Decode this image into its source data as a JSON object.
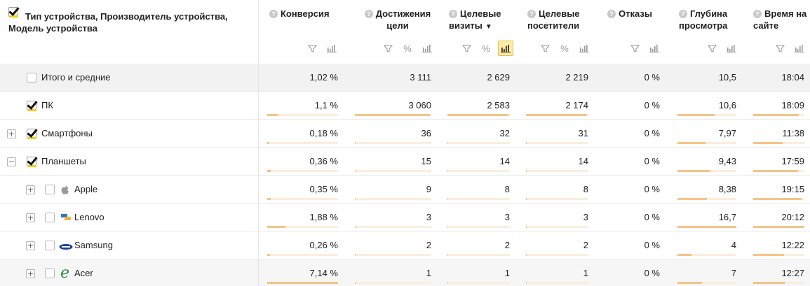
{
  "header": {
    "dimension_title": "Тип устройства, Производитель устройства, Модель устройства",
    "metrics": [
      {
        "id": "conversion",
        "label": "Конверсия",
        "controls": [
          "filter",
          "chart"
        ]
      },
      {
        "id": "goal_reaches",
        "label": "Достижения цели",
        "controls": [
          "filter",
          "percent",
          "chart"
        ]
      },
      {
        "id": "target_visits",
        "label": "Целевые визиты",
        "sorted": true,
        "controls": [
          "filter",
          "percent",
          "chart"
        ]
      },
      {
        "id": "target_visitors",
        "label": "Целевые посетители",
        "controls": [
          "filter",
          "percent",
          "chart"
        ]
      },
      {
        "id": "bounces",
        "label": "Отказы",
        "controls": [
          "filter",
          "chart"
        ]
      },
      {
        "id": "depth",
        "label": "Глубина просмотра",
        "controls": [
          "filter",
          "chart"
        ]
      },
      {
        "id": "time",
        "label": "Время на сайте",
        "controls": [
          "filter",
          "chart"
        ]
      }
    ],
    "sort_arrow": "▼"
  },
  "rows": [
    {
      "label": "Итого и средние",
      "kind": "total",
      "checked": false,
      "expander": "",
      "values": [
        "1,02 %",
        "3 111",
        "2 629",
        "2 219",
        "0 %",
        "10,5",
        "18:04"
      ],
      "fills": [
        null,
        null,
        null,
        null,
        null,
        null,
        null
      ]
    },
    {
      "label": "ПК",
      "kind": "level1",
      "checked": true,
      "expander": "",
      "values": [
        "1,1 %",
        "3 060",
        "2 583",
        "2 174",
        "0 %",
        "10,6",
        "18:09"
      ],
      "fills": [
        0.16,
        0.98,
        0.98,
        0.98,
        0,
        0.63,
        0.89
      ]
    },
    {
      "label": "Смартфоны",
      "kind": "level1",
      "checked": true,
      "expander": "+",
      "values": [
        "0,18 %",
        "36",
        "32",
        "31",
        "0 %",
        "7,97",
        "11:38"
      ],
      "fills": [
        0.03,
        0.012,
        0.012,
        0.014,
        0,
        0.48,
        0.57
      ]
    },
    {
      "label": "Планшеты",
      "kind": "level1",
      "checked": true,
      "expander": "−",
      "values": [
        "0,36 %",
        "15",
        "14",
        "14",
        "0 %",
        "9,43",
        "17:59"
      ],
      "fills": [
        0.05,
        0.005,
        0.005,
        0.006,
        0,
        0.56,
        0.88
      ]
    },
    {
      "label": "Apple",
      "kind": "level2",
      "icon": "apple-icon",
      "checked": false,
      "expander": "+",
      "values": [
        "0,35 %",
        "9",
        "8",
        "8",
        "0 %",
        "8,38",
        "19:15"
      ],
      "fills": [
        0.05,
        0.003,
        0.003,
        0.004,
        0,
        0.5,
        0.94
      ]
    },
    {
      "label": "Lenovo",
      "kind": "level2",
      "icon": "lenovo-icon",
      "checked": false,
      "expander": "+",
      "values": [
        "1,88 %",
        "3",
        "3",
        "3",
        "0 %",
        "16,7",
        "20:12"
      ],
      "fills": [
        0.26,
        0.001,
        0.001,
        0.001,
        0,
        1.0,
        0.99
      ]
    },
    {
      "label": "Samsung",
      "kind": "level2",
      "icon": "samsung-icon",
      "checked": false,
      "expander": "+",
      "values": [
        "0,26 %",
        "2",
        "2",
        "2",
        "0 %",
        "4",
        "12:22"
      ],
      "fills": [
        0.04,
        0.001,
        0.001,
        0.001,
        0,
        0.24,
        0.6
      ]
    },
    {
      "label": "Acer",
      "kind": "level2",
      "icon": "acer-icon",
      "checked": false,
      "expander": "+",
      "values": [
        "7,14 %",
        "1",
        "1",
        "1",
        "0 %",
        "7",
        "12:27"
      ],
      "fills": [
        1.0,
        0.0003,
        0.0004,
        0.0005,
        0,
        0.42,
        0.61
      ]
    }
  ],
  "colors": {
    "bar_track": "#fbeedd",
    "bar_fill": "#f6c487",
    "active_control": "#ffeba0"
  }
}
